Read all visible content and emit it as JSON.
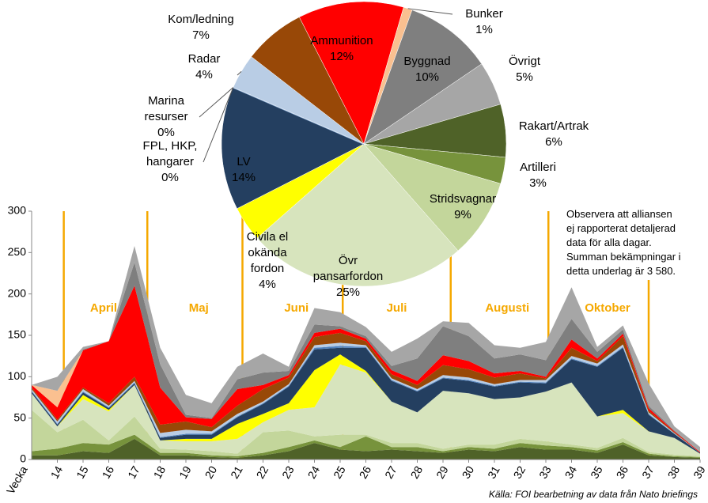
{
  "chart_data": [
    {
      "type": "stacked_area",
      "x_label": "Vecka",
      "x": [
        13,
        14,
        15,
        16,
        17,
        18,
        19,
        20,
        21,
        22,
        23,
        24,
        25,
        26,
        27,
        28,
        29,
        30,
        31,
        32,
        33,
        34,
        35,
        36,
        37,
        38,
        39
      ],
      "xlim": [
        13,
        39
      ],
      "xticks": [
        14,
        15,
        16,
        17,
        18,
        19,
        20,
        21,
        22,
        23,
        24,
        25,
        26,
        27,
        28,
        29,
        30,
        31,
        32,
        33,
        34,
        35,
        36,
        37,
        38,
        39
      ],
      "ylim": [
        0,
        300
      ],
      "yticks": [
        0,
        50,
        100,
        150,
        200,
        250,
        300
      ],
      "months": {
        "labels": [
          "April",
          "Maj",
          "Juni",
          "Juli",
          "Augusti",
          "Oktober"
        ],
        "x": [
          15.8,
          19.5,
          23.3,
          27.2,
          31.5,
          35.4
        ],
        "boundaries": [
          14.25,
          17.5,
          21.2,
          25.1,
          29.3,
          33.1,
          37.0
        ],
        "color": "#f5a800"
      },
      "series": [
        {
          "color": "#4f6228",
          "values": [
            5,
            5,
            10,
            8,
            25,
            5,
            5,
            3,
            2,
            5,
            10,
            20,
            12,
            10,
            12,
            10,
            8,
            12,
            10,
            15,
            12,
            12,
            8,
            18,
            5,
            3,
            2
          ]
        },
        {
          "color": "#77933c",
          "values": [
            5,
            8,
            10,
            10,
            5,
            3,
            3,
            2,
            2,
            3,
            5,
            3,
            3,
            18,
            3,
            5,
            2,
            3,
            3,
            5,
            5,
            3,
            3,
            3,
            2,
            1,
            1
          ]
        },
        {
          "color": "#c3d69b",
          "values": [
            50,
            20,
            28,
            5,
            22,
            5,
            4,
            5,
            3,
            25,
            20,
            5,
            15,
            2,
            5,
            5,
            3,
            3,
            5,
            5,
            5,
            3,
            3,
            5,
            2,
            2,
            1
          ]
        },
        {
          "color": "#d7e4bd",
          "values": [
            20,
            7,
            25,
            35,
            38,
            10,
            10,
            12,
            18,
            12,
            25,
            35,
            85,
            75,
            50,
            37,
            70,
            62,
            55,
            50,
            60,
            75,
            38,
            30,
            25,
            20,
            3
          ]
        },
        {
          "color": "#ffff00",
          "values": [
            0,
            0,
            5,
            2,
            0,
            0,
            3,
            3,
            18,
            10,
            8,
            45,
            12,
            2,
            0,
            0,
            0,
            0,
            0,
            0,
            0,
            0,
            0,
            4,
            0,
            0,
            0
          ]
        },
        {
          "color": "#243f60",
          "values": [
            2,
            2,
            3,
            2,
            2,
            3,
            5,
            5,
            8,
            12,
            20,
            25,
            8,
            28,
            25,
            25,
            15,
            15,
            15,
            18,
            10,
            28,
            60,
            75,
            20,
            5,
            1
          ]
        },
        {
          "color": "#4f81bd",
          "values": [
            1,
            1,
            1,
            1,
            1,
            1,
            1,
            1,
            1,
            1,
            1,
            2,
            2,
            1,
            1,
            1,
            1,
            1,
            1,
            1,
            1,
            1,
            1,
            1,
            1,
            0,
            0
          ]
        },
        {
          "color": "#95b3d7",
          "values": [
            0,
            0,
            0,
            0,
            0,
            0,
            0,
            0,
            0,
            0,
            0,
            0,
            1,
            0,
            0,
            0,
            0,
            0,
            0,
            0,
            0,
            0,
            0,
            0,
            0,
            0,
            0
          ]
        },
        {
          "color": "#b9cde5",
          "values": [
            2,
            3,
            3,
            2,
            2,
            5,
            5,
            3,
            3,
            2,
            2,
            3,
            3,
            2,
            2,
            2,
            3,
            3,
            2,
            2,
            3,
            3,
            3,
            3,
            2,
            1,
            0
          ]
        },
        {
          "color": "#984807",
          "values": [
            2,
            2,
            2,
            3,
            5,
            10,
            10,
            5,
            10,
            15,
            8,
            10,
            12,
            5,
            5,
            5,
            12,
            10,
            8,
            8,
            2,
            10,
            3,
            10,
            2,
            1,
            0
          ]
        },
        {
          "color": "#ff0000",
          "values": [
            3,
            15,
            45,
            75,
            110,
            45,
            5,
            10,
            20,
            5,
            3,
            5,
            5,
            3,
            5,
            5,
            12,
            10,
            5,
            3,
            2,
            10,
            3,
            3,
            3,
            1,
            1
          ]
        },
        {
          "color": "#fac090",
          "values": [
            0,
            20,
            0,
            0,
            0,
            0,
            0,
            0,
            0,
            0,
            0,
            0,
            0,
            0,
            0,
            0,
            0,
            0,
            0,
            0,
            0,
            0,
            0,
            0,
            0,
            0,
            0
          ]
        },
        {
          "color": "#7f7f7f",
          "values": [
            0,
            0,
            1,
            0,
            28,
            28,
            3,
            1,
            12,
            15,
            5,
            10,
            3,
            3,
            5,
            27,
            35,
            30,
            18,
            20,
            20,
            25,
            8,
            5,
            3,
            1,
            0
          ]
        },
        {
          "color": "#a6a6a6",
          "values": [
            0,
            17,
            3,
            0,
            20,
            20,
            24,
            18,
            15,
            23,
            5,
            20,
            17,
            11,
            17,
            24,
            6,
            16,
            16,
            8,
            22,
            38,
            6,
            5,
            27,
            5,
            6
          ]
        }
      ]
    },
    {
      "type": "pie",
      "labels": [
        "Ammunition",
        "Bunker",
        "Byggnad",
        "Övrigt",
        "Rakart/Artrak",
        "Artilleri",
        "Stridsvagnar",
        "Övr pansarfordon",
        "Civila el okända fordon",
        "LV",
        "FPL, HKP, hangarer",
        "Marina resurser",
        "Radar",
        "Kom/ledning"
      ],
      "values": [
        12,
        1,
        10,
        5,
        6,
        3,
        9,
        25,
        4,
        14,
        0,
        0,
        4,
        7
      ],
      "value_labels": [
        "12%",
        "1%",
        "10%",
        "5%",
        "6%",
        "3%",
        "9%",
        "25%",
        "4%",
        "14%",
        "0%",
        "0%",
        "4%",
        "7%"
      ],
      "colors": [
        "#ff0000",
        "#fac090",
        "#7f7f7f",
        "#a6a6a6",
        "#4f6228",
        "#77933c",
        "#c3d69b",
        "#d7e4bd",
        "#ffff00",
        "#243f60",
        "#4f81bd",
        "#95b3d7",
        "#b9cde5",
        "#984807"
      ]
    }
  ],
  "note": "Observera att alliansen ej rapporterat detaljerad data för alla dagar. Summan bekämpningar i detta underlag är 3 580.",
  "source": "Källa: FOI bearbetning av data från Nato briefings"
}
